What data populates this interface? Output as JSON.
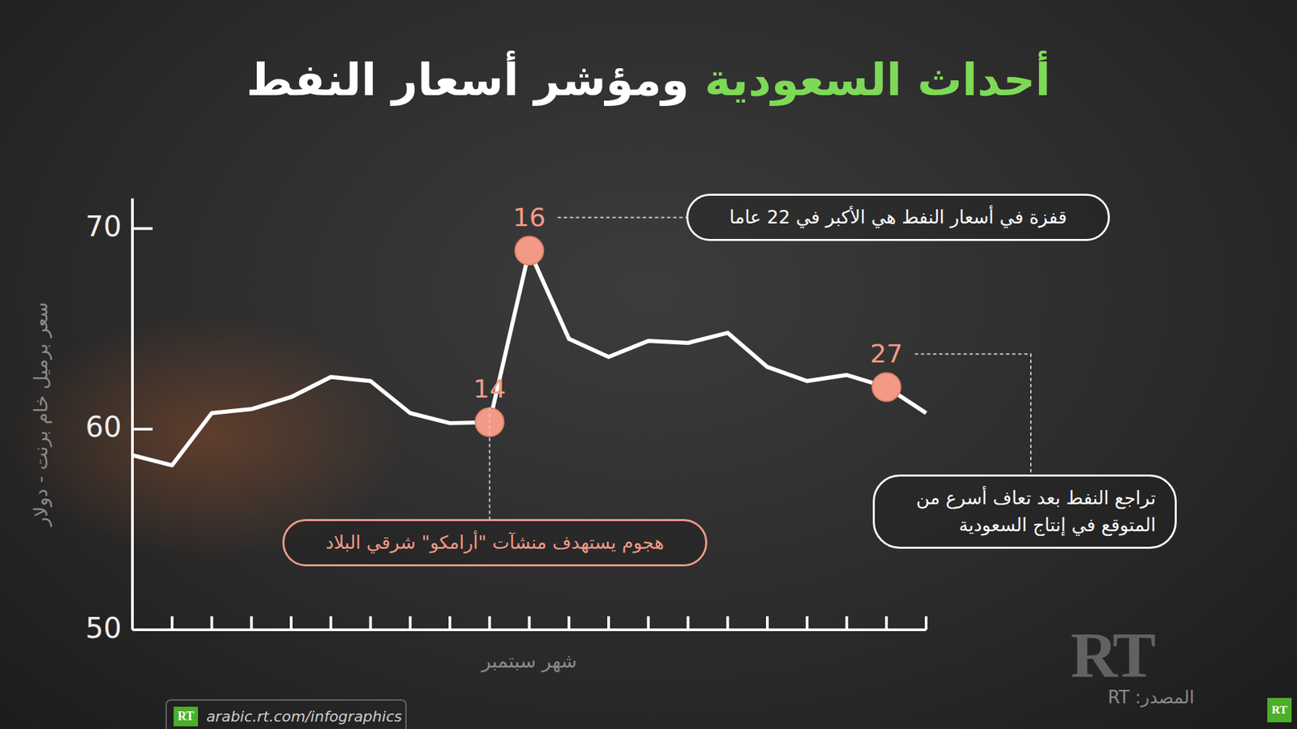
{
  "chart_data": {
    "type": "line",
    "title_parts": [
      {
        "text": "أحداث السعودية",
        "color": "#7ed957"
      },
      {
        "text": "ومؤشر أسعار النفط",
        "color": "#ffffff"
      }
    ],
    "y_label": "سعر برميل خام برنت - دولار",
    "x_label": "شهر سبتمبر",
    "categories": [
      null,
      null,
      null,
      null,
      null,
      null,
      null,
      null,
      null,
      "14",
      "16",
      null,
      null,
      null,
      null,
      null,
      null,
      null,
      null,
      "27",
      null
    ],
    "values": [
      58.7,
      58.2,
      60.8,
      61.0,
      61.6,
      62.6,
      62.4,
      60.8,
      60.3,
      60.35,
      68.9,
      64.5,
      63.6,
      64.4,
      64.3,
      64.8,
      63.1,
      62.4,
      62.7,
      62.1,
      60.8
    ],
    "color": "#ffffff",
    "marker": "circle",
    "ylim": [
      50,
      71.5
    ],
    "yticks": [
      50,
      60,
      70
    ],
    "grid": false,
    "tick_labels": "y",
    "annotations": [
      {
        "category": "16",
        "text": "قفزة في أسعار النفط هي الأكبر في 22 عاما",
        "color": "#ffffff"
      },
      {
        "category": "14",
        "text": "هجوم يستهدف منشآت \"أرامكو\" شرقي البلاد",
        "color": "#f29a85"
      },
      {
        "category": "27",
        "text": "تراجع النفط بعد تعاف أسرع من المتوقع في إنتاج السعودية",
        "color": "#ffffff"
      }
    ],
    "footer": {
      "source": "المصدر: RT",
      "url": "arabic.rt.com/infographics",
      "logo": "RT"
    }
  }
}
